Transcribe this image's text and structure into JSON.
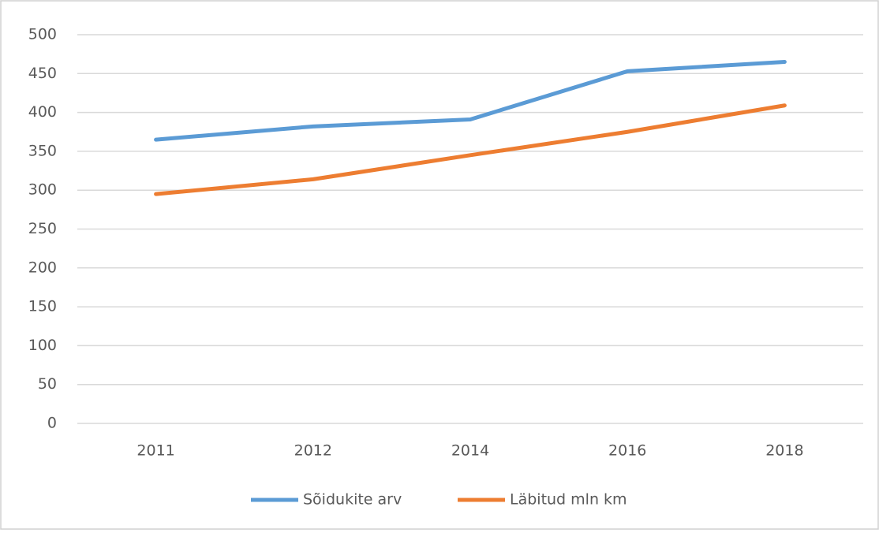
{
  "chart_data": {
    "type": "line",
    "categories": [
      "2011",
      "2012",
      "2014",
      "2016",
      "2018"
    ],
    "series": [
      {
        "name": "Sõidukite arv",
        "color": "#5b9bd5",
        "values": [
          365,
          382,
          391,
          453,
          465
        ]
      },
      {
        "name": "Läbitud mln km",
        "color": "#ed7d31",
        "values": [
          295,
          314,
          345,
          375,
          409
        ]
      }
    ],
    "ylim": [
      0,
      500
    ],
    "yticks": [
      0,
      50,
      100,
      150,
      200,
      250,
      300,
      350,
      400,
      450,
      500
    ],
    "grid": true,
    "legend": "bottom"
  }
}
